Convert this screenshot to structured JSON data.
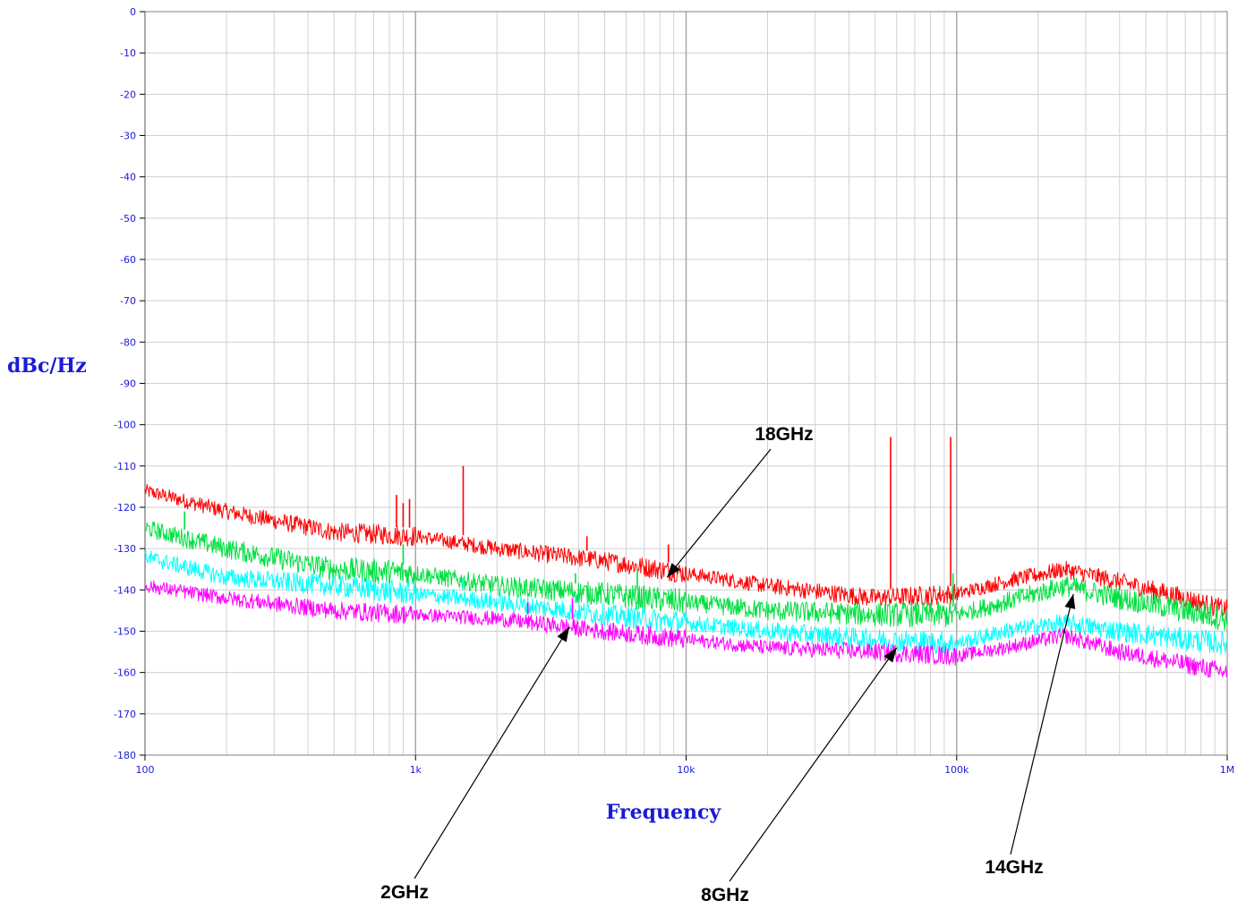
{
  "chart_data": {
    "type": "line",
    "title": "",
    "xlabel": "Frequency",
    "ylabel": "dBc/Hz",
    "x_scale": "log",
    "xlim": [
      100,
      1000000
    ],
    "ylim": [
      -180,
      0
    ],
    "grid": true,
    "y_ticks": [
      0,
      -10,
      -20,
      -30,
      -40,
      -50,
      -60,
      -70,
      -80,
      -90,
      -100,
      -110,
      -120,
      -130,
      -140,
      -150,
      -160,
      -170,
      -180
    ],
    "y_tick_labels": [
      "0",
      "-10",
      "-20",
      "-30",
      "-40",
      "-50",
      "-60",
      "-70",
      "-80",
      "-90",
      "-100",
      "-110",
      "-120",
      "-130",
      "-140",
      "-150",
      "-160",
      "-170",
      "-180"
    ],
    "x_ticks": [
      100,
      1000,
      10000,
      100000,
      1000000
    ],
    "x_tick_labels": [
      "100",
      "1k",
      "10k",
      "100k",
      "1M"
    ],
    "series": [
      {
        "color": "#ff0000",
        "x": [
          100,
          200,
          500,
          1000,
          2000,
          5000,
          10000,
          20000,
          50000,
          100000,
          150000,
          250000,
          400000,
          700000,
          1000000
        ],
        "y": [
          -116,
          -121,
          -126,
          -127,
          -130,
          -133,
          -136,
          -139,
          -142,
          -141,
          -138,
          -135,
          -138,
          -142,
          -145
        ],
        "noise": 1.6,
        "spurs": [
          {
            "x": 850,
            "y": -117
          },
          {
            "x": 900,
            "y": -119
          },
          {
            "x": 950,
            "y": -118
          },
          {
            "x": 1500,
            "y": -110
          },
          {
            "x": 4300,
            "y": -127
          },
          {
            "x": 8600,
            "y": -129
          },
          {
            "x": 57000,
            "y": -103
          },
          {
            "x": 95000,
            "y": -103
          }
        ]
      },
      {
        "color": "#00e040",
        "x": [
          100,
          200,
          500,
          1000,
          2000,
          5000,
          10000,
          20000,
          50000,
          100000,
          150000,
          250000,
          400000,
          700000,
          1000000
        ],
        "y": [
          -125,
          -130,
          -135,
          -136,
          -139,
          -141,
          -143,
          -145,
          -146,
          -146,
          -143,
          -139,
          -142,
          -145,
          -147
        ],
        "noise": 2.0,
        "spurs": [
          {
            "x": 140,
            "y": -121
          },
          {
            "x": 900,
            "y": -129
          },
          {
            "x": 3900,
            "y": -136
          },
          {
            "x": 6600,
            "y": -135
          },
          {
            "x": 97000,
            "y": -136
          }
        ]
      },
      {
        "color": "#00ffff",
        "x": [
          100,
          200,
          500,
          1000,
          2000,
          5000,
          10000,
          20000,
          50000,
          100000,
          150000,
          250000,
          400000,
          700000,
          1000000
        ],
        "y": [
          -132,
          -137,
          -139,
          -141,
          -143,
          -146,
          -148,
          -150,
          -152,
          -153,
          -150,
          -148,
          -150,
          -152,
          -153
        ],
        "noise": 1.8,
        "spurs": [
          {
            "x": 1500,
            "y": -137
          },
          {
            "x": 3900,
            "y": -141
          }
        ]
      },
      {
        "color": "#ff00ff",
        "x": [
          100,
          200,
          500,
          1000,
          2000,
          5000,
          10000,
          20000,
          50000,
          100000,
          150000,
          250000,
          400000,
          700000,
          1000000
        ],
        "y": [
          -139,
          -142,
          -145,
          -146,
          -147,
          -150,
          -152,
          -154,
          -155,
          -156,
          -154,
          -151,
          -155,
          -158,
          -160
        ],
        "noise": 1.5,
        "spurs": [
          {
            "x": 2600,
            "y": -143
          },
          {
            "x": 3800,
            "y": -142
          }
        ]
      }
    ],
    "annotations": [
      {
        "label": "18GHz",
        "point": {
          "x": 8500,
          "y": -137
        }
      },
      {
        "label": "2GHz",
        "point": {
          "x": 3700,
          "y": -149
        }
      },
      {
        "label": "8GHz",
        "point": {
          "x": 60000,
          "y": -154
        }
      },
      {
        "label": "14GHz",
        "point": {
          "x": 270000,
          "y": -141
        }
      }
    ]
  }
}
